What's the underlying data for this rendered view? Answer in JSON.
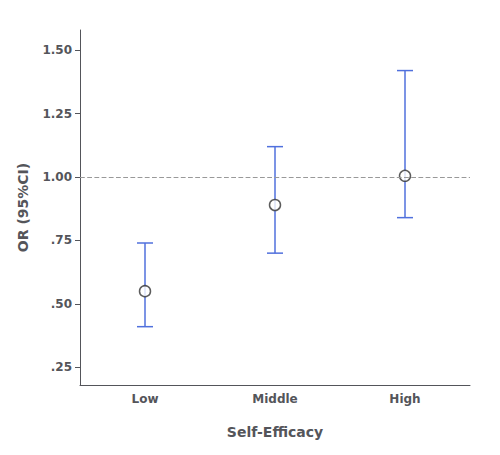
{
  "chart_data": {
    "type": "scatter",
    "xlabel": "Self-Efficacy",
    "ylabel": "OR (95%CI)",
    "categories": [
      "Low",
      "Middle",
      "High"
    ],
    "values": [
      0.55,
      0.89,
      1.005
    ],
    "ci_lower": [
      0.41,
      0.7,
      0.84
    ],
    "ci_upper": [
      0.74,
      1.12,
      1.42
    ],
    "ylim": [
      0.18,
      1.58
    ],
    "yticks": [
      {
        "value": 0.25,
        "label": ".25"
      },
      {
        "value": 0.5,
        "label": ".50"
      },
      {
        "value": 0.75,
        "label": ".75"
      },
      {
        "value": 1.0,
        "label": "1.00"
      },
      {
        "value": 1.25,
        "label": "1.25"
      },
      {
        "value": 1.5,
        "label": "1.50"
      }
    ],
    "hline": 1.0,
    "marker": "circle",
    "grid": false
  }
}
